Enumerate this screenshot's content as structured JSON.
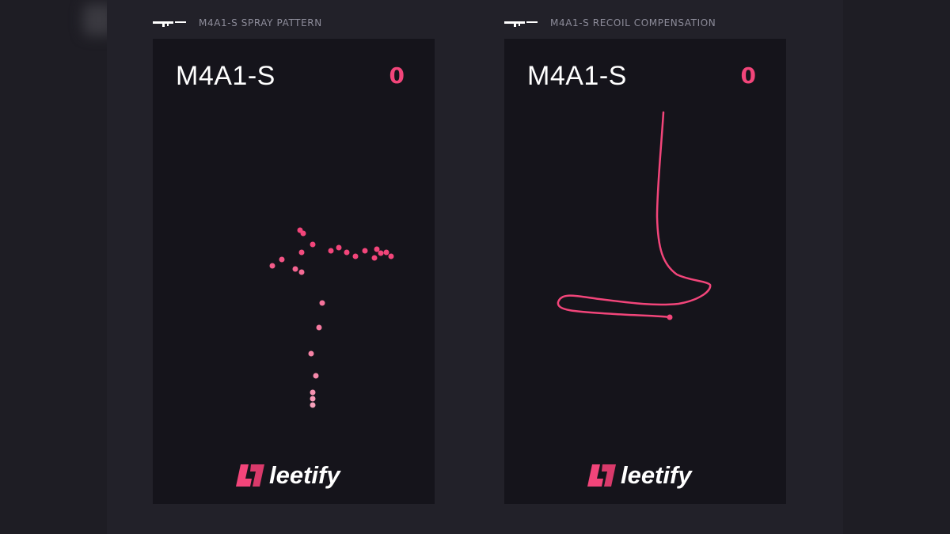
{
  "left_section": {
    "title": "M4A1-S SPRAY PATTERN",
    "weapon": "M4A1-S",
    "score": "0",
    "icon": "rifle-icon"
  },
  "right_section": {
    "title": "M4A1-S RECOIL COMPENSATION",
    "weapon": "M4A1-S",
    "score": "0",
    "icon": "rifle-icon"
  },
  "brand": {
    "name": "leetify",
    "accent": "#f2457a"
  },
  "colors": {
    "bullet_early": "#f7a0bb",
    "bullet_late": "#f2457a",
    "path": "#f2457a",
    "card_bg": "#15141b"
  }
}
